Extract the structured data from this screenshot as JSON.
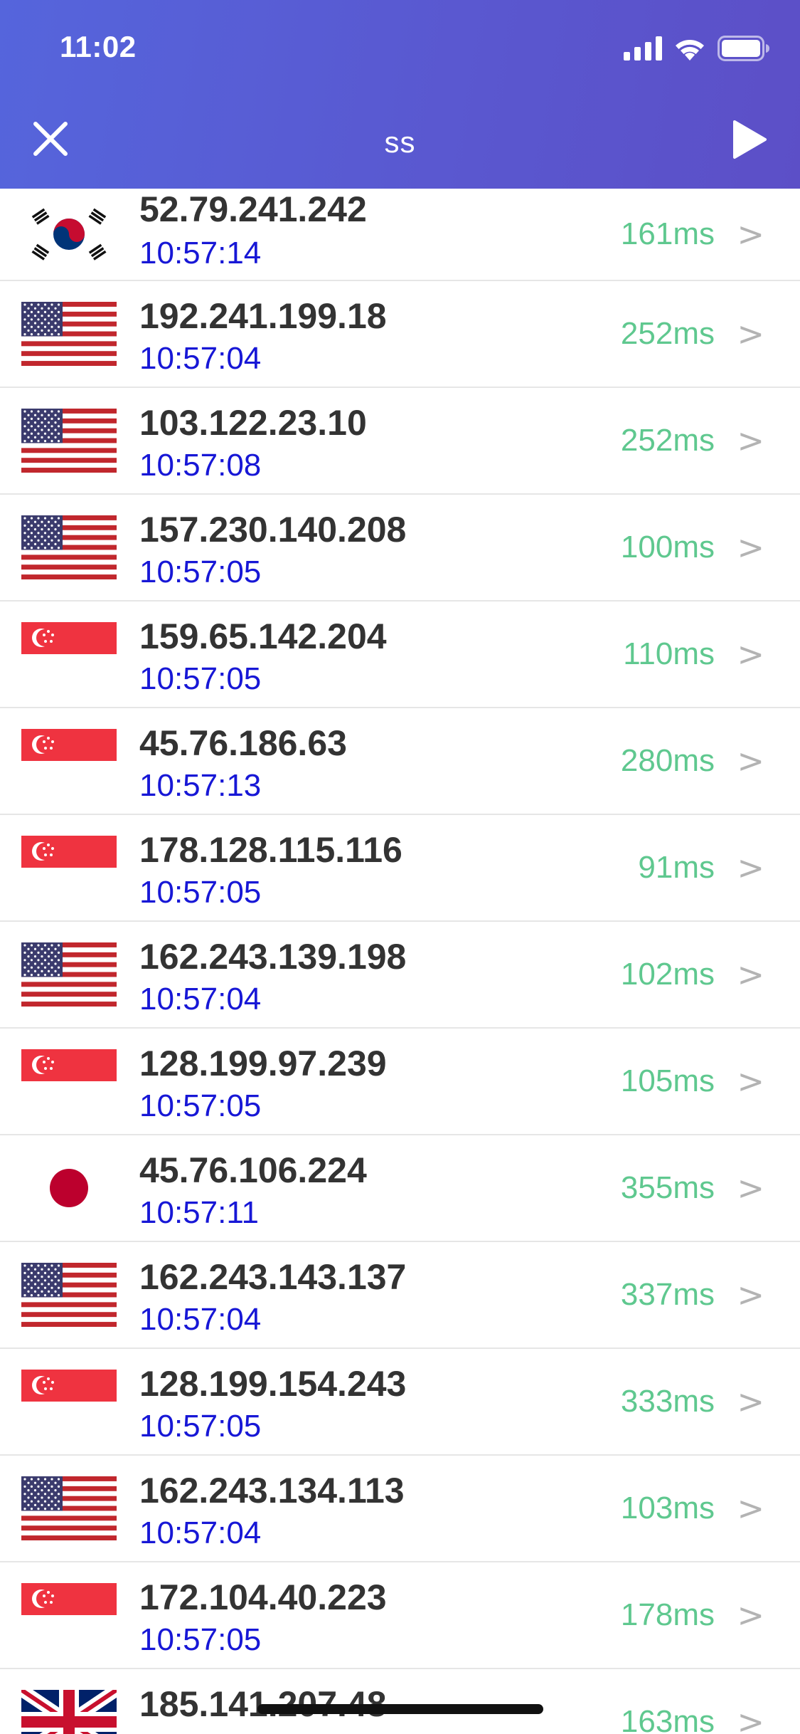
{
  "status_bar": {
    "time": "11:02"
  },
  "nav": {
    "title": "ss",
    "close_icon": "close-icon",
    "play_icon": "play-icon"
  },
  "colors": {
    "header_start": "#5565dc",
    "header_end": "#5c4fc7",
    "ip_text": "#333333",
    "time_text": "#1717d6",
    "latency_text": "#5fc88f",
    "chevron": "#b3b3b3"
  },
  "servers": [
    {
      "flag": "kr",
      "ip": "52.79.241.242",
      "time": "10:57:14",
      "latency": "161ms"
    },
    {
      "flag": "us",
      "ip": "192.241.199.18",
      "time": "10:57:04",
      "latency": "252ms"
    },
    {
      "flag": "us",
      "ip": "103.122.23.10",
      "time": "10:57:08",
      "latency": "252ms"
    },
    {
      "flag": "us",
      "ip": "157.230.140.208",
      "time": "10:57:05",
      "latency": "100ms"
    },
    {
      "flag": "sg",
      "ip": "159.65.142.204",
      "time": "10:57:05",
      "latency": "110ms"
    },
    {
      "flag": "sg",
      "ip": "45.76.186.63",
      "time": "10:57:13",
      "latency": "280ms"
    },
    {
      "flag": "sg",
      "ip": "178.128.115.116",
      "time": "10:57:05",
      "latency": "91ms"
    },
    {
      "flag": "us",
      "ip": "162.243.139.198",
      "time": "10:57:04",
      "latency": "102ms"
    },
    {
      "flag": "sg",
      "ip": "128.199.97.239",
      "time": "10:57:05",
      "latency": "105ms"
    },
    {
      "flag": "jp",
      "ip": "45.76.106.224",
      "time": "10:57:11",
      "latency": "355ms"
    },
    {
      "flag": "us",
      "ip": "162.243.143.137",
      "time": "10:57:04",
      "latency": "337ms"
    },
    {
      "flag": "sg",
      "ip": "128.199.154.243",
      "time": "10:57:05",
      "latency": "333ms"
    },
    {
      "flag": "us",
      "ip": "162.243.134.113",
      "time": "10:57:04",
      "latency": "103ms"
    },
    {
      "flag": "sg",
      "ip": "172.104.40.223",
      "time": "10:57:05",
      "latency": "178ms"
    },
    {
      "flag": "gb",
      "ip": "185.141.207.48",
      "time": "",
      "latency": "163ms"
    }
  ]
}
